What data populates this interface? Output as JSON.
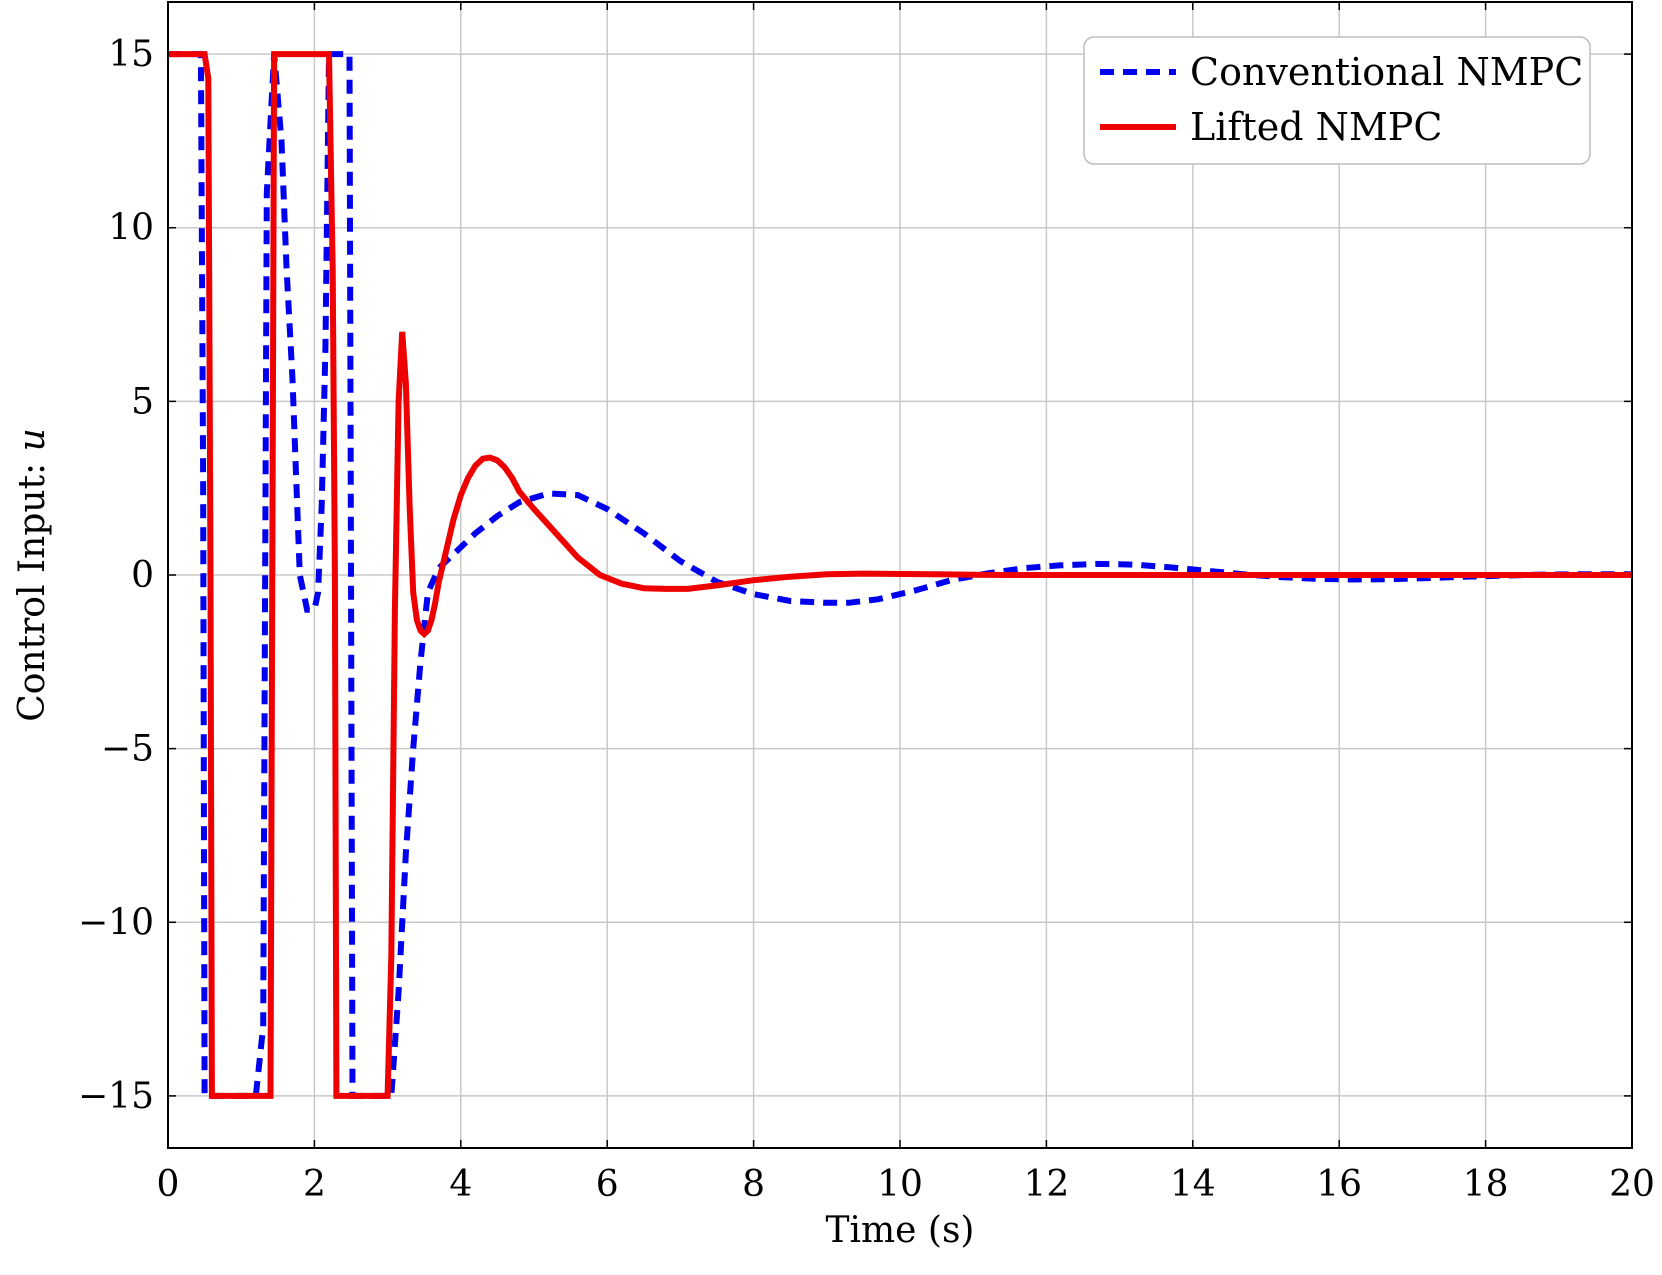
{
  "chart_data": {
    "type": "line",
    "title": "",
    "xlabel": "Time (s)",
    "ylabel_text": "Control Input: ",
    "ylabel_symbol": "u",
    "xlim": [
      0,
      20
    ],
    "ylim": [
      -16.5,
      16.5
    ],
    "xticks": [
      0,
      2,
      4,
      6,
      8,
      10,
      12,
      14,
      16,
      18,
      20
    ],
    "yticks": [
      -15,
      -10,
      -5,
      0,
      5,
      10,
      15
    ],
    "xtick_labels": [
      "0",
      "2",
      "4",
      "6",
      "8",
      "10",
      "12",
      "14",
      "16",
      "18",
      "20"
    ],
    "ytick_labels": [
      "−15",
      "−10",
      "−5",
      "0",
      "5",
      "10",
      "15"
    ],
    "grid": true,
    "legend_position": "top-right",
    "series": [
      {
        "name": "Conventional NMPC",
        "color": "#0000ee",
        "style": "dashed",
        "x": [
          0,
          0.45,
          0.48,
          0.5,
          0.52,
          0.55,
          1.2,
          1.3,
          1.35,
          1.45,
          1.55,
          1.62,
          1.7,
          1.8,
          1.9,
          2.0,
          2.05,
          2.1,
          2.15,
          2.2,
          2.3,
          2.4,
          2.48,
          2.52,
          2.55,
          2.6,
          2.7,
          2.8,
          2.9,
          3.0,
          3.05,
          3.15,
          3.25,
          3.35,
          3.45,
          3.55,
          3.7,
          3.9,
          4.2,
          4.5,
          4.8,
          5.2,
          5.6,
          6.0,
          6.5,
          7.0,
          7.5,
          8.0,
          8.5,
          9.0,
          9.3,
          9.7,
          10.2,
          10.7,
          11.2,
          11.7,
          12.2,
          12.7,
          13.2,
          13.7,
          14.2,
          14.7,
          15.2,
          15.7,
          16.2,
          16.7,
          17.2,
          17.7,
          18.2,
          18.7,
          19.2,
          19.7,
          20.0
        ],
        "y": [
          15,
          15,
          3,
          -15,
          -15,
          -15,
          -15,
          -13,
          11,
          15,
          12.5,
          8.8,
          5.7,
          0,
          -1,
          -1,
          -0.5,
          2,
          6.5,
          15,
          15,
          15,
          15,
          -15,
          -15,
          -15,
          -15,
          -15,
          -15,
          -15,
          -15,
          -12,
          -8,
          -5,
          -2.5,
          -0.5,
          0.2,
          0.6,
          1.2,
          1.7,
          2.1,
          2.35,
          2.3,
          1.9,
          1.2,
          0.4,
          -0.2,
          -0.55,
          -0.75,
          -0.8,
          -0.8,
          -0.7,
          -0.45,
          -0.15,
          0.05,
          0.2,
          0.28,
          0.32,
          0.3,
          0.22,
          0.12,
          0.02,
          -0.06,
          -0.11,
          -0.13,
          -0.12,
          -0.09,
          -0.05,
          -0.02,
          0.01,
          0.02,
          0.02,
          0.02
        ]
      },
      {
        "name": "Lifted NMPC",
        "color": "#ee0000",
        "style": "solid",
        "x": [
          0,
          0.5,
          0.55,
          0.58,
          0.6,
          1.0,
          1.4,
          1.45,
          1.5,
          2.2,
          2.25,
          2.28,
          2.3,
          3.0,
          3.05,
          3.1,
          3.15,
          3.2,
          3.25,
          3.3,
          3.35,
          3.4,
          3.45,
          3.5,
          3.55,
          3.6,
          3.65,
          3.7,
          3.8,
          3.9,
          4.0,
          4.1,
          4.2,
          4.3,
          4.4,
          4.5,
          4.6,
          4.7,
          4.8,
          5.0,
          5.3,
          5.6,
          5.9,
          6.2,
          6.5,
          6.8,
          7.1,
          7.5,
          8.0,
          8.5,
          9.0,
          9.5,
          10.0,
          10.5,
          11.0,
          11.5,
          12.0,
          13.0,
          14.0,
          15.0,
          16.0,
          18.0,
          20.0
        ],
        "y": [
          15,
          15,
          14.3,
          0,
          -15,
          -15,
          -15,
          15,
          15,
          15,
          8.8,
          0,
          -15,
          -15,
          -11,
          -1,
          5,
          7,
          5.5,
          2,
          -0.5,
          -1.3,
          -1.6,
          -1.7,
          -1.6,
          -1.3,
          -0.8,
          -0.2,
          0.7,
          1.6,
          2.3,
          2.8,
          3.15,
          3.35,
          3.38,
          3.3,
          3.1,
          2.8,
          2.4,
          1.9,
          1.2,
          0.5,
          0.0,
          -0.25,
          -0.38,
          -0.4,
          -0.4,
          -0.3,
          -0.15,
          -0.05,
          0.02,
          0.04,
          0.03,
          0.02,
          0.01,
          0.0,
          0.0,
          0.0,
          0.0,
          0.0,
          0.0,
          0.0,
          0.0
        ]
      }
    ]
  }
}
